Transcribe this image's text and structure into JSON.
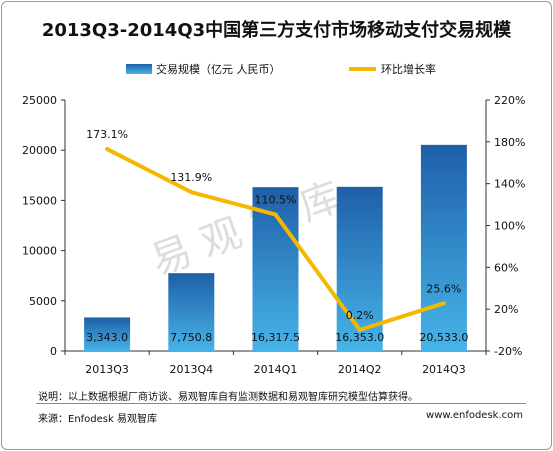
{
  "chart_data": {
    "type": "bar+line",
    "title": "2013Q3-2014Q3中国第三方支付市场移动支付交易规模",
    "categories": [
      "2013Q3",
      "2013Q4",
      "2014Q1",
      "2014Q2",
      "2014Q3"
    ],
    "series": [
      {
        "name": "交易规模（亿元 人民币）",
        "type": "bar",
        "axis": "left",
        "values": [
          3343.0,
          7750.8,
          16317.5,
          16353.0,
          20533.0
        ],
        "labels": [
          "3,343.0",
          "7,750.8",
          "16,317.5",
          "16,353.0",
          "20,533.0"
        ]
      },
      {
        "name": "环比增长率",
        "type": "line",
        "axis": "right",
        "values": [
          173.1,
          131.9,
          110.5,
          0.2,
          25.6
        ],
        "labels": [
          "173.1%",
          "131.9%",
          "110.5%",
          "0.2%",
          "25.6%"
        ]
      }
    ],
    "y_left": {
      "range": [
        0,
        25000
      ],
      "ticks": [
        0,
        5000,
        10000,
        15000,
        20000,
        25000
      ],
      "tick_labels": [
        "0",
        "5000",
        "10000",
        "15000",
        "20000",
        "25000"
      ]
    },
    "y_right": {
      "range": [
        -20,
        220
      ],
      "ticks": [
        -20,
        20,
        60,
        100,
        140,
        180,
        220
      ],
      "tick_labels": [
        "-20%",
        "20%",
        "60%",
        "100%",
        "140%",
        "180%",
        "220%"
      ]
    },
    "legend_position": "top",
    "grid": false,
    "colors": {
      "bar_top": "#1f5fa8",
      "bar_bottom": "#46b4e8",
      "line": "#f5b800",
      "axis": "#333333",
      "watermark": "#d0d0d0"
    }
  },
  "notes": {
    "explanation": "说明：以上数据根据厂商访谈、易观智库自有监测数据和易观智库研究模型估算获得。",
    "source": "来源：Enfodesk 易观智库",
    "site": "www.enfodesk.com",
    "watermark": "易 观 智 库"
  }
}
